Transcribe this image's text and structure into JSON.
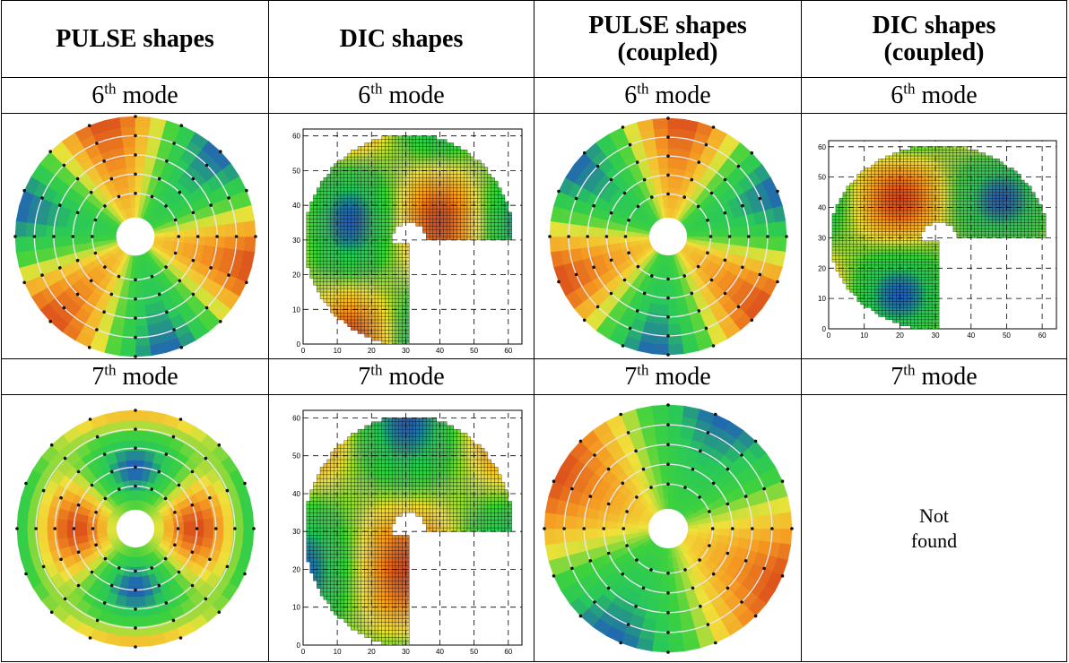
{
  "headers": [
    [
      "PULSE shapes"
    ],
    [
      "DIC shapes"
    ],
    [
      "PULSE shapes",
      "(coupled)"
    ],
    [
      "DIC shapes",
      "(coupled)"
    ]
  ],
  "mode_labels": {
    "row1": {
      "number": "6",
      "suffix": "th",
      "word": "mode"
    },
    "row2": {
      "number": "7",
      "suffix": "th",
      "word": "mode"
    }
  },
  "dic_axis_ticks": {
    "x": [
      "0",
      "10",
      "20",
      "30",
      "40",
      "50",
      "60"
    ],
    "y": [
      "0",
      "10",
      "20",
      "30",
      "40",
      "50",
      "60"
    ]
  },
  "not_found": [
    "Not",
    "found"
  ],
  "colors": {
    "blue": "#1e3cd6",
    "green": "#3fd23c",
    "yellow": "#f0e23a",
    "orange": "#f59a22",
    "red": "#d23218"
  }
}
